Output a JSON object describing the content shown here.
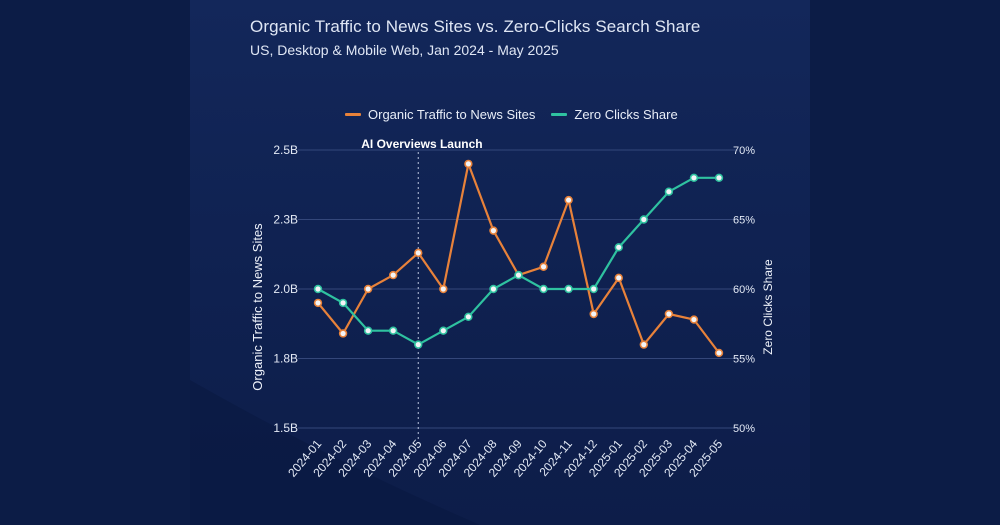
{
  "title": "Organic Traffic to News Sites vs. Zero-Clicks Search Share",
  "subtitle": "US, Desktop & Mobile Web, Jan 2024 - May 2025",
  "colors": {
    "background": "#0c1c46",
    "organic_series": "#e8823a",
    "zero_clicks_series": "#2fc2a0",
    "text": "#e9eef8",
    "grid": "#3a4c7c"
  },
  "chart_data": {
    "type": "line",
    "title": "Organic Traffic to News Sites vs. Zero-Clicks Search Share",
    "subtitle": "US, Desktop & Mobile Web, Jan 2024 - May 2025",
    "x": [
      "2024-01",
      "2024-02",
      "2024-03",
      "2024-04",
      "2024-05",
      "2024-06",
      "2024-07",
      "2024-08",
      "2024-09",
      "2024-10",
      "2024-11",
      "2024-12",
      "2025-01",
      "2025-02",
      "2025-03",
      "2025-04",
      "2025-05"
    ],
    "series": [
      {
        "name": "Organic Traffic to News Sites",
        "axis": "left",
        "color": "#e8823a",
        "values": [
          1.95,
          1.84,
          2.0,
          2.05,
          2.13,
          2.0,
          2.45,
          2.21,
          2.05,
          2.08,
          2.32,
          1.91,
          2.04,
          1.8,
          1.91,
          1.89,
          1.77
        ]
      },
      {
        "name": "Zero Clicks Share",
        "axis": "right",
        "color": "#2fc2a0",
        "values": [
          60,
          59,
          57,
          57,
          56,
          57,
          58,
          60,
          61,
          60,
          60,
          60,
          63,
          65,
          67,
          68,
          68
        ]
      }
    ],
    "y_left": {
      "label": "Organic Traffic to News Sites",
      "range": [
        1.5,
        2.5
      ],
      "ticks": [
        1.5,
        1.75,
        2.0,
        2.25,
        2.5
      ],
      "tick_labels": [
        "1.5B",
        "1.8B",
        "2.0B",
        "2.3B",
        "2.5B"
      ]
    },
    "y_right": {
      "label": "Zero Clicks Share",
      "range": [
        50,
        70
      ],
      "ticks": [
        50,
        55,
        60,
        65,
        70
      ],
      "tick_labels": [
        "50%",
        "55%",
        "60%",
        "65%",
        "70%"
      ]
    },
    "annotations": [
      {
        "text": "AI Overviews Launch",
        "x": "2024-05",
        "style": "dashed-vertical-line"
      }
    ],
    "grid": "horizontal",
    "legend": "top-center"
  }
}
